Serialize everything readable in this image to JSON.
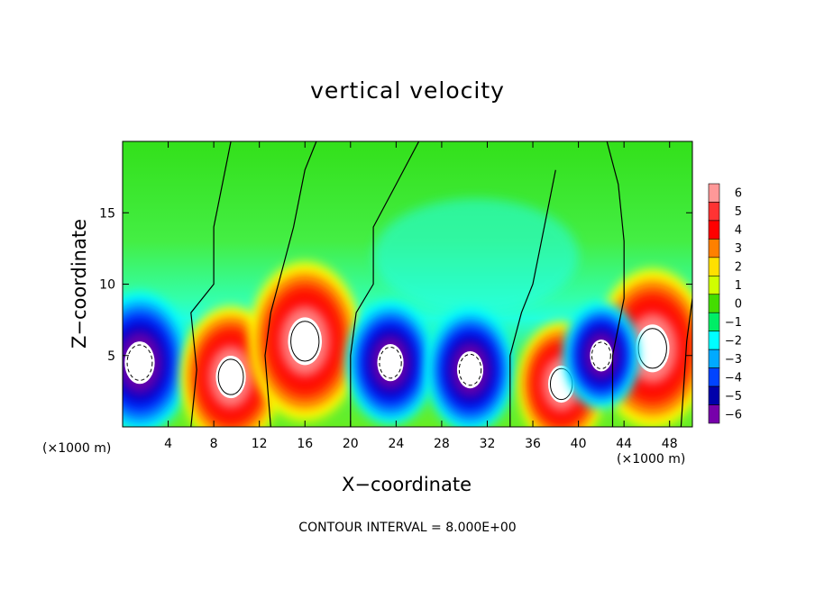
{
  "chart_data": {
    "type": "heatmap",
    "title": "vertical velocity",
    "xlabel": "X−coordinate",
    "ylabel": "Z−coordinate",
    "x_unit_label": "(×1000 m)",
    "footer": "CONTOUR INTERVAL = 8.000E+00",
    "xlim": [
      0,
      50
    ],
    "ylim": [
      0,
      20
    ],
    "x_ticks": [
      4,
      8,
      12,
      16,
      20,
      24,
      28,
      32,
      36,
      40,
      44,
      48
    ],
    "y_ticks": [
      5,
      10,
      15
    ],
    "colorbar": {
      "levels": [
        6,
        5,
        4,
        3,
        2,
        1,
        0,
        -1,
        -2,
        -3,
        -4,
        -5,
        -6
      ],
      "labels": [
        "6",
        "5",
        "4",
        "3",
        "2",
        "1",
        "0",
        "−1",
        "−2",
        "−3",
        "−4",
        "−5",
        "−6"
      ],
      "colors": [
        "#ff9898",
        "#ff3333",
        "#ff0000",
        "#ff8000",
        "#ffe000",
        "#d0ff00",
        "#44dd00",
        "#00ee66",
        "#00ffff",
        "#00aaff",
        "#0044ff",
        "#0000aa",
        "#7700aa"
      ]
    },
    "field_description": {
      "background_levels": [
        {
          "y_from": 0,
          "y_to": 8,
          "value": 0
        },
        {
          "y_from": 8,
          "y_to": 20,
          "value": 0.5
        }
      ],
      "cells": [
        {
          "x": 1.5,
          "z": 4.5,
          "sign": "down",
          "magnitude": 8
        },
        {
          "x": 9.5,
          "z": 3.5,
          "sign": "up",
          "magnitude": 8
        },
        {
          "x": 16.0,
          "z": 6.0,
          "sign": "up",
          "magnitude": 9
        },
        {
          "x": 23.5,
          "z": 4.5,
          "sign": "down",
          "magnitude": 7
        },
        {
          "x": 30.5,
          "z": 4.0,
          "sign": "down",
          "magnitude": 7
        },
        {
          "x": 38.5,
          "z": 3.0,
          "sign": "up",
          "magnitude": 7
        },
        {
          "x": 46.5,
          "z": 5.5,
          "sign": "up",
          "magnitude": 9
        },
        {
          "x": 42.0,
          "z": 5.0,
          "sign": "down",
          "magnitude": 6
        }
      ]
    }
  }
}
